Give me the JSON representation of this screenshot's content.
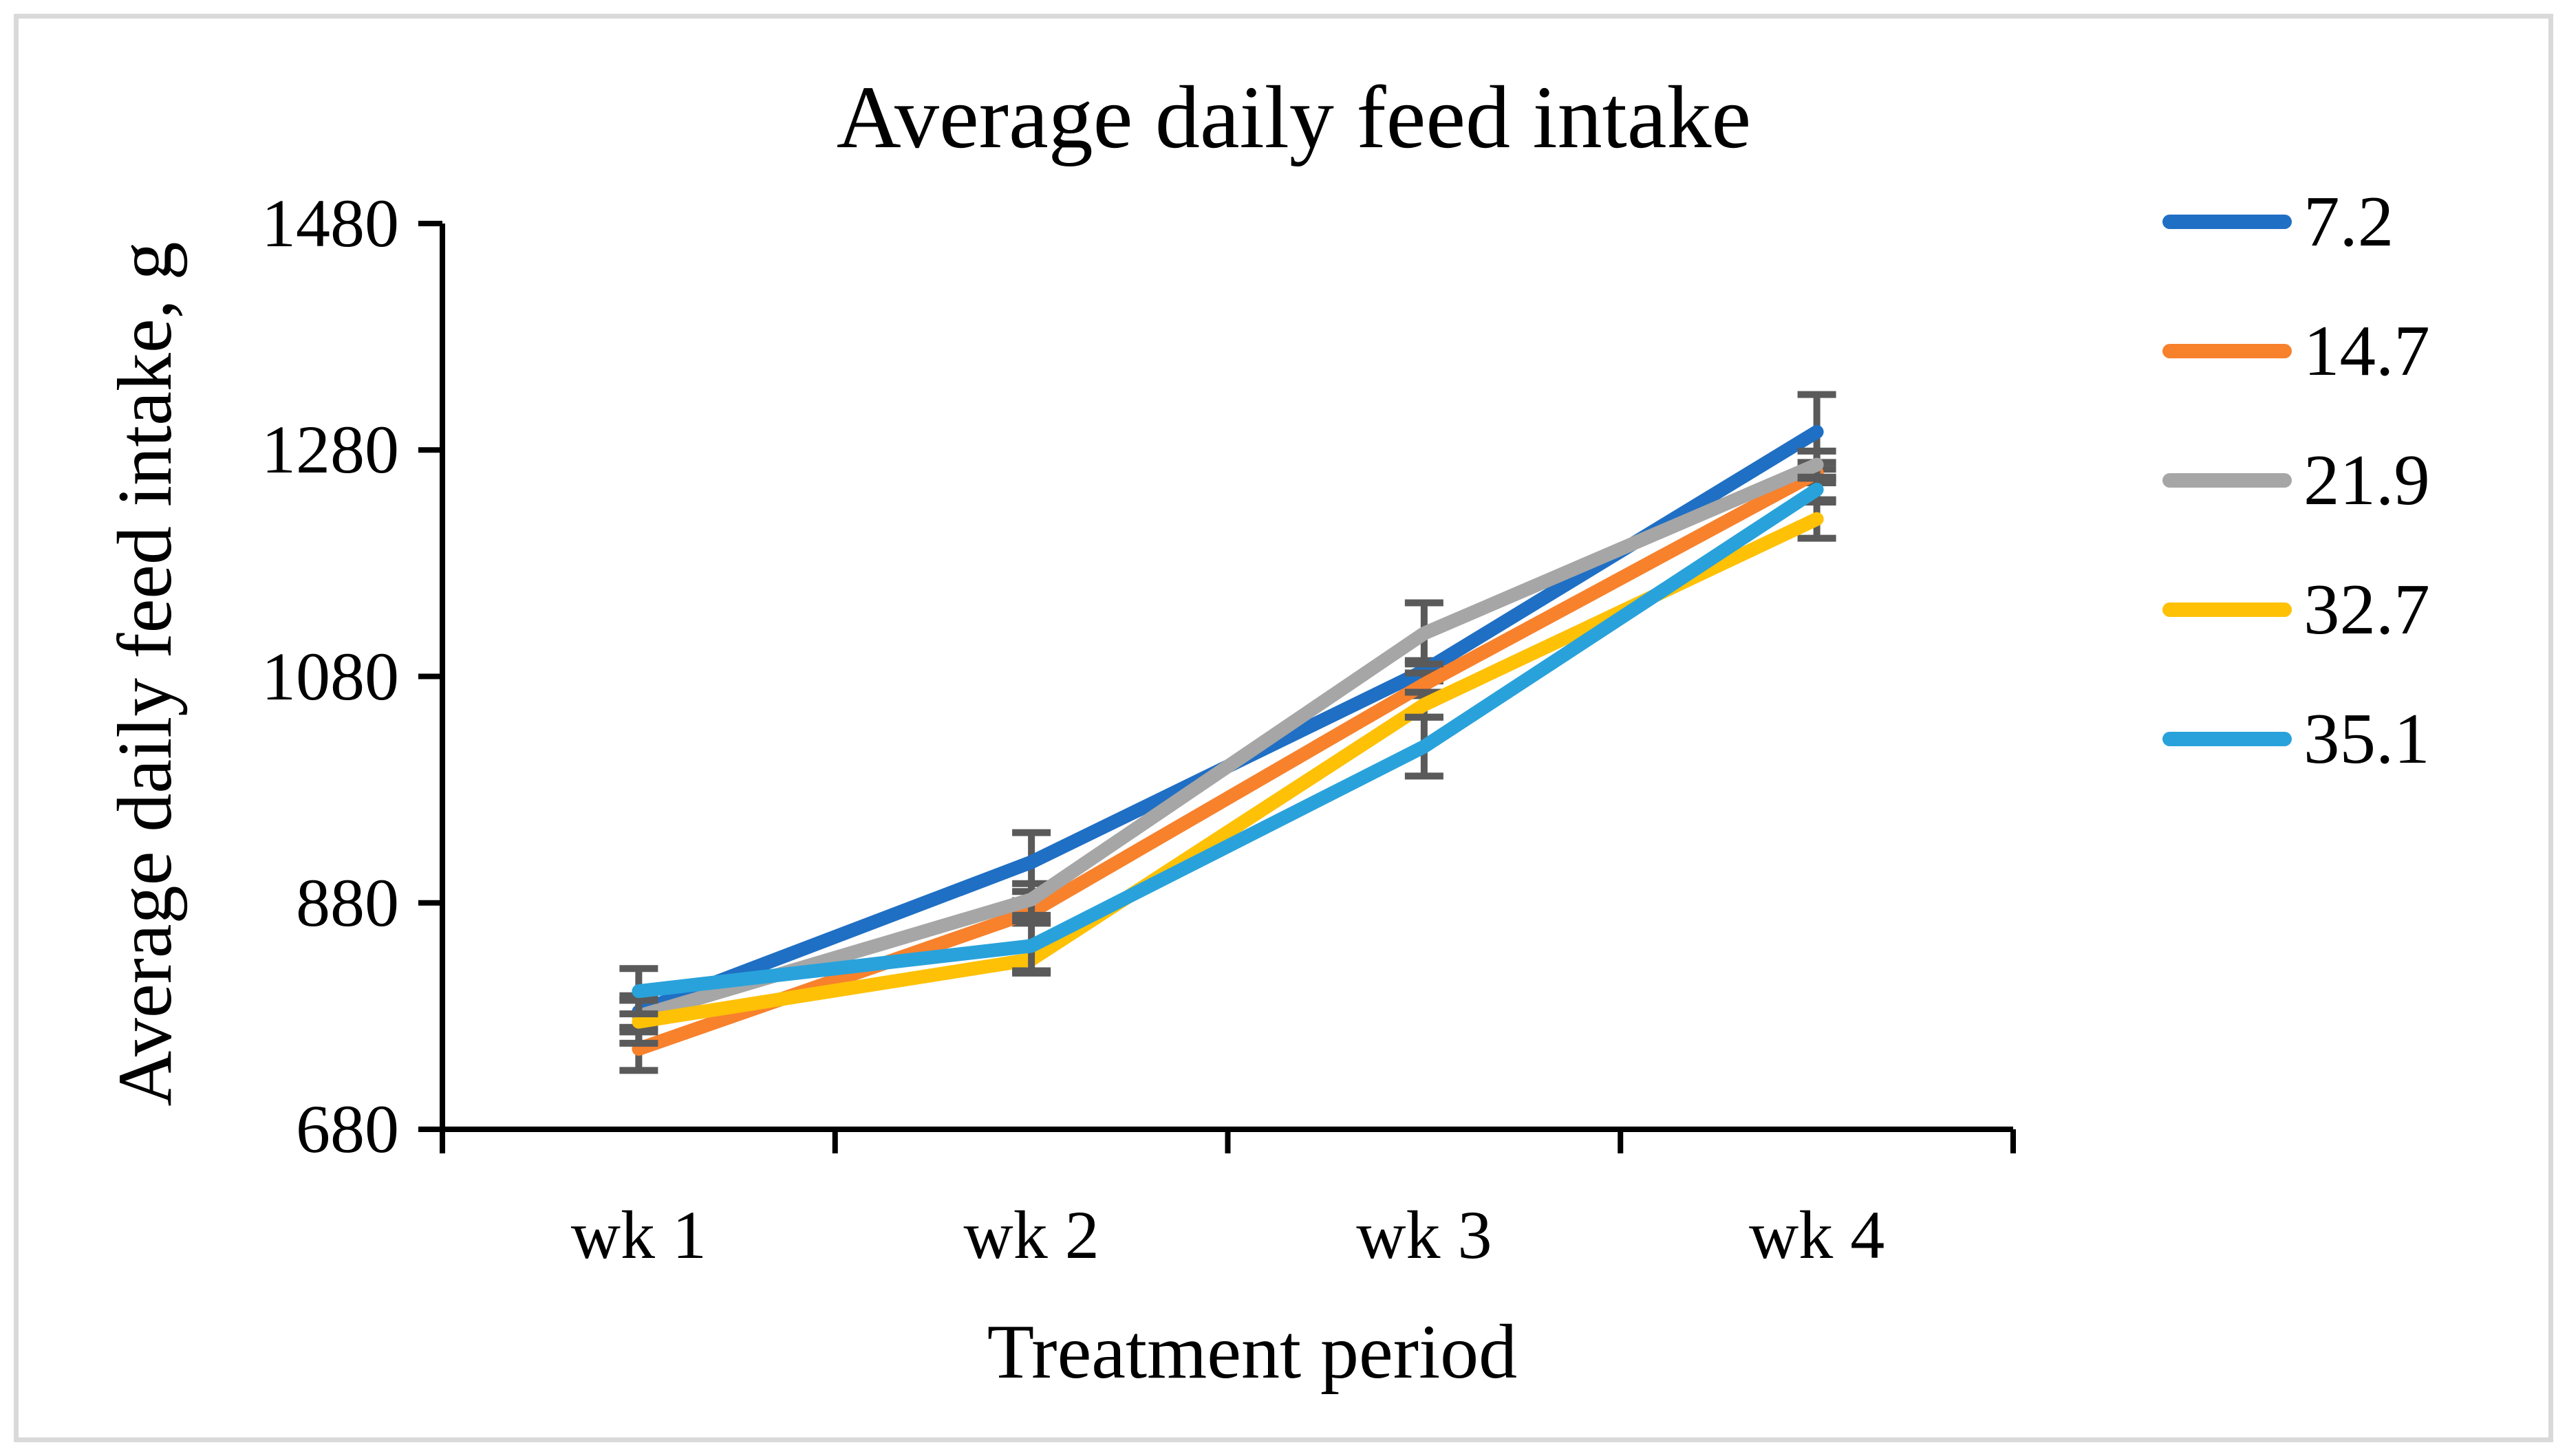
{
  "title": "Average daily feed intake",
  "y_axis": {
    "label": "Average daily feed intake, g",
    "ticks": [
      "1480",
      "1280",
      "1080",
      "880",
      "680"
    ]
  },
  "x_axis": {
    "label": "Treatment period",
    "categories": [
      "wk 1",
      "wk 2",
      "wk 3",
      "wk 4"
    ]
  },
  "legend": {
    "position": "right",
    "items": [
      {
        "label": "7.2",
        "color": "#1F6FC4"
      },
      {
        "label": "14.7",
        "color": "#F8812C"
      },
      {
        "label": "21.9",
        "color": "#A6A6A6"
      },
      {
        "label": "32.7",
        "color": "#FEC106"
      },
      {
        "label": "35.1",
        "color": "#29A2DB"
      }
    ]
  },
  "colors": {
    "axis": "#000000",
    "error_bar": "#5A5A5A",
    "frame_border": "#D9D9D9",
    "background": "#FFFFFF"
  },
  "chart_data": {
    "type": "line",
    "title": "Average daily feed intake",
    "xlabel": "Treatment period",
    "ylabel": "Average daily feed intake, g",
    "categories": [
      "wk 1",
      "wk 2",
      "wk 3",
      "wk 4"
    ],
    "ylim": [
      680,
      1480
    ],
    "ytick_step": 200,
    "ytick_values": [
      1480,
      1280,
      1080,
      880,
      680
    ],
    "grid": false,
    "markers": false,
    "error_bars": true,
    "legend_position": "right",
    "series": [
      {
        "name": "7.2",
        "color": "#1F6FC4",
        "values": [
          784,
          916,
          1085,
          1296
        ],
        "errors": [
          14,
          26,
          9,
          33
        ]
      },
      {
        "name": "14.7",
        "color": "#F8812C",
        "values": [
          751,
          872,
          1073,
          1260
        ],
        "errors": [
          19,
          10,
          10,
          9
        ]
      },
      {
        "name": "21.9",
        "color": "#A6A6A6",
        "values": [
          780,
          883,
          1118,
          1267
        ],
        "errors": [
          14,
          14,
          27,
          12
        ]
      },
      {
        "name": "32.7",
        "color": "#FEC106",
        "values": [
          775,
          830,
          1055,
          1219
        ],
        "errors": [
          19,
          12,
          11,
          17
        ]
      },
      {
        "name": "35.1",
        "color": "#29A2DB",
        "values": [
          802,
          842,
          1018,
          1245
        ],
        "errors": [
          20,
          22,
          26,
          11
        ]
      }
    ]
  }
}
